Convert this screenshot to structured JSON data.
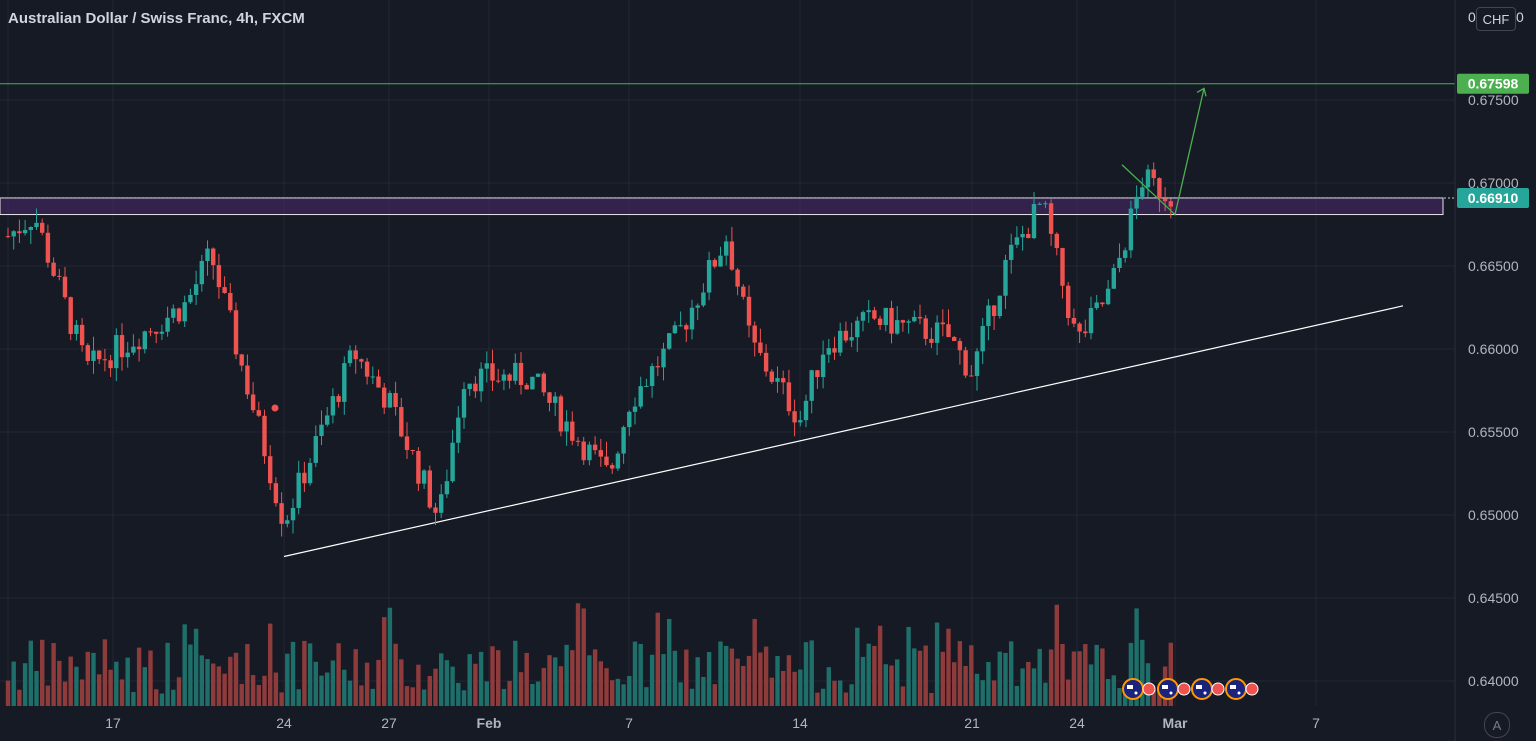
{
  "header": {
    "title": "Australian Dollar / Swiss Franc, 4h, FXCM",
    "left_value": "0",
    "currency": "CHF",
    "right_value": "0"
  },
  "scale_button": "A",
  "colors": {
    "background": "#161a25",
    "grid": "#232733",
    "up": "#26a69a",
    "down": "#ef5350",
    "up_volume": "#1e6e69",
    "down_volume": "#8e3b3c",
    "zone_fill": "#4a2a6e",
    "target": "#4caf50",
    "text": "#b2b5be"
  },
  "chart_data": {
    "type": "candlestick",
    "symbol": "Australian Dollar / Swiss Franc",
    "timeframe": "4h",
    "source": "FXCM",
    "price_axis": {
      "ticks": [
        "0.67500",
        "0.67000",
        "0.66500",
        "0.66000",
        "0.65500",
        "0.65000",
        "0.64500",
        "0.64000"
      ],
      "ylim": [
        0.6381,
        0.6818
      ]
    },
    "time_axis": {
      "ticks": [
        "17",
        "24",
        "27",
        "Feb",
        "7",
        "14",
        "21",
        "24",
        "Mar",
        "7"
      ]
    },
    "price_labels": [
      {
        "value": "0.67598",
        "kind": "target"
      },
      {
        "value": "0.66910",
        "kind": "last"
      }
    ],
    "horizontal_levels": [
      {
        "name": "target",
        "price": 0.67598
      }
    ],
    "resistance_zone": {
      "top": 0.6691,
      "bottom": 0.6681
    },
    "trendline": {
      "from": {
        "date": "Jan 24",
        "price": 0.6475
      },
      "to": {
        "date": "Mar 10",
        "price": 0.6626
      }
    },
    "projection_path": [
      {
        "date": "Feb 26",
        "price": 0.6711
      },
      {
        "date": "Feb 27",
        "price": 0.6681
      },
      {
        "date": "Mar 2",
        "price": 0.6757
      }
    ],
    "ohlc_key_points": [
      {
        "date": "Jan 13",
        "price": 0.6668
      },
      {
        "date": "Jan 14",
        "price": 0.6681
      },
      {
        "date": "Jan 16",
        "price": 0.6588
      },
      {
        "date": "Jan 20",
        "price": 0.6627
      },
      {
        "date": "Jan 21",
        "price": 0.6657
      },
      {
        "date": "Jan 23",
        "price": 0.6551
      },
      {
        "date": "Jan 24",
        "price": 0.6496
      },
      {
        "date": "Jan 26",
        "price": 0.6598
      },
      {
        "date": "Jan 27",
        "price": 0.6568
      },
      {
        "date": "Jan 28",
        "price": 0.6533
      },
      {
        "date": "Jan 29",
        "price": 0.6498
      },
      {
        "date": "Jan 30",
        "price": 0.6583
      },
      {
        "date": "Feb 2",
        "price": 0.6583
      },
      {
        "date": "Feb 6",
        "price": 0.6523
      },
      {
        "date": "Feb 7",
        "price": 0.6568
      },
      {
        "date": "Feb 9",
        "price": 0.6608
      },
      {
        "date": "Feb 11",
        "price": 0.6668
      },
      {
        "date": "Feb 12",
        "price": 0.6603
      },
      {
        "date": "Feb 14",
        "price": 0.6558
      },
      {
        "date": "Feb 15",
        "price": 0.6603
      },
      {
        "date": "Feb 17",
        "price": 0.6618
      },
      {
        "date": "Feb 20",
        "price": 0.6608
      },
      {
        "date": "Feb 21",
        "price": 0.6586
      },
      {
        "date": "Feb 22",
        "price": 0.6653
      },
      {
        "date": "Feb 23",
        "price": 0.6688
      },
      {
        "date": "Feb 24",
        "price": 0.6604
      },
      {
        "date": "Feb 25",
        "price": 0.6634
      },
      {
        "date": "Feb 26",
        "price": 0.6702
      },
      {
        "date": "Feb 27",
        "price": 0.6691
      }
    ],
    "volume": "shown as histogram under candles, colored by candle direction",
    "event_markers": [
      "AU",
      "AU",
      "AU",
      "AU",
      "AU"
    ]
  }
}
